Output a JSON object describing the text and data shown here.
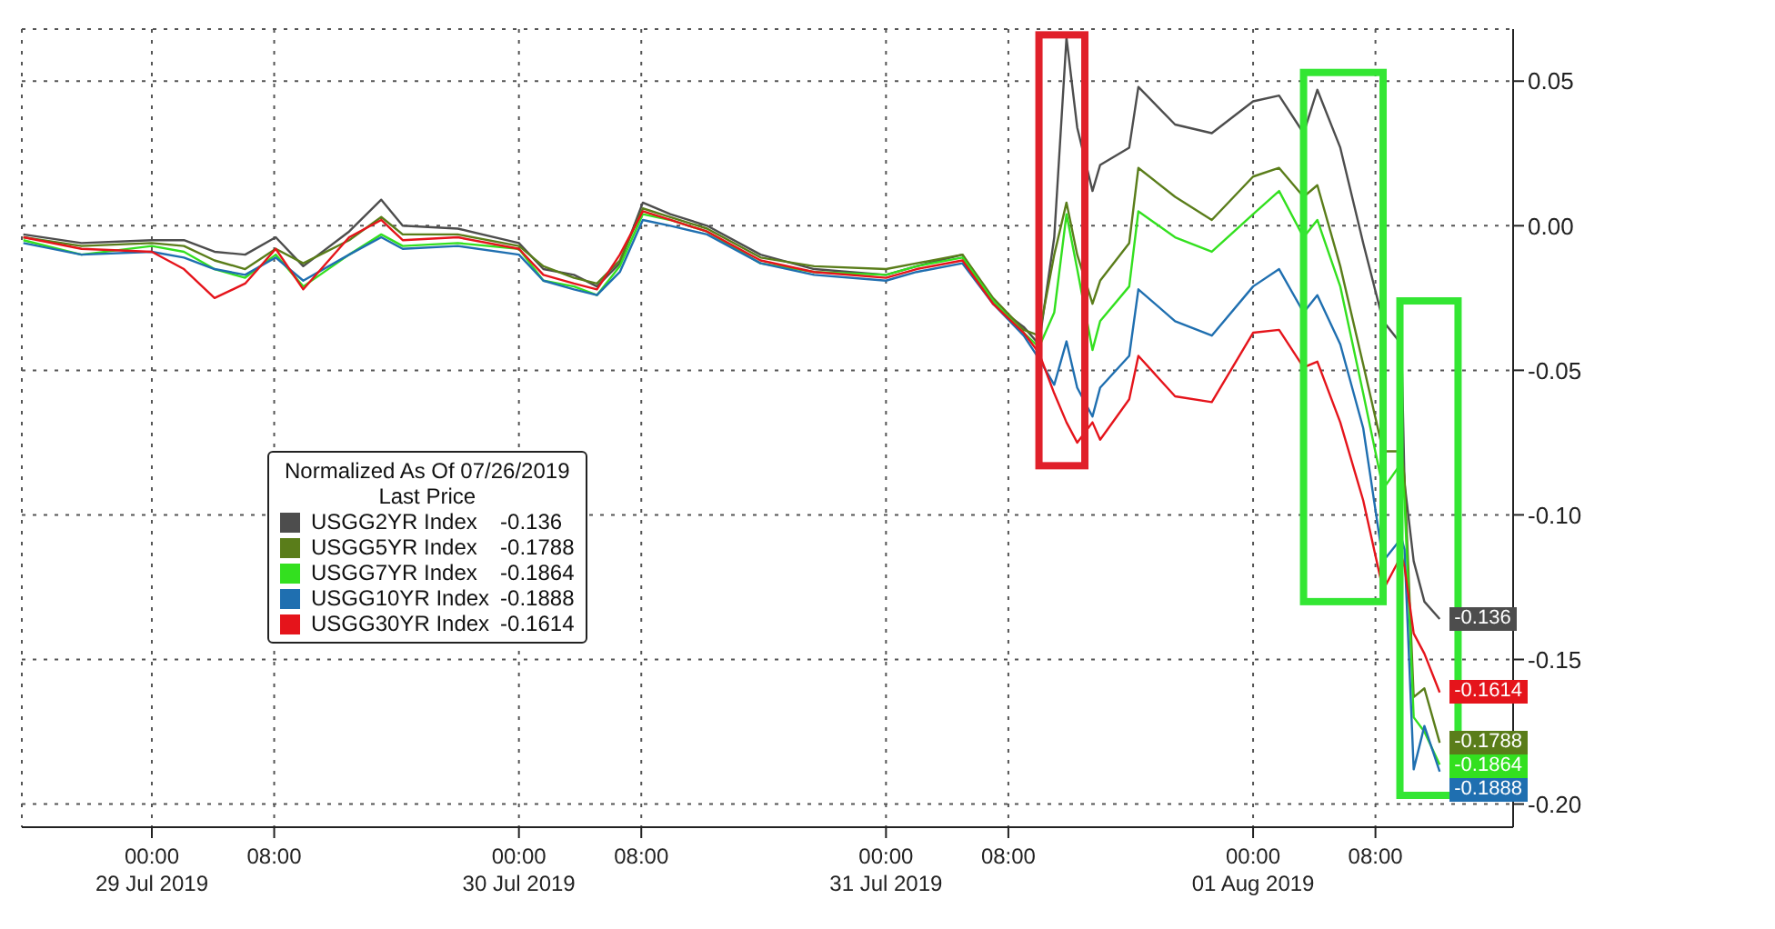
{
  "chart_data": {
    "type": "line",
    "legend_title": "Normalized As Of 07/26/2019\nLast Price",
    "legend": "left",
    "grid": true,
    "x": [
      "2019-07-28T15:36",
      "2019-07-28T19:24",
      "2019-07-29T00:00",
      "2019-07-29T02:06",
      "2019-07-29T04:06",
      "2019-07-29T06:06",
      "2019-07-29T08:06",
      "2019-07-29T09:54",
      "2019-07-29T12:54",
      "2019-07-29T15:00",
      "2019-07-29T16:24",
      "2019-07-29T20:00",
      "2019-07-30T00:00",
      "2019-07-30T01:36",
      "2019-07-30T03:36",
      "2019-07-30T05:06",
      "2019-07-30T06:36",
      "2019-07-30T08:06",
      "2019-07-30T09:54",
      "2019-07-30T12:18",
      "2019-07-30T15:48",
      "2019-07-30T19:18",
      "2019-07-31T00:00",
      "2019-07-31T02:00",
      "2019-07-31T05:00",
      "2019-07-31T07:00",
      "2019-07-31T09:00",
      "2019-07-31T10:00",
      "2019-07-31T11:00",
      "2019-07-31T11:48",
      "2019-07-31T12:30",
      "2019-07-31T13:30",
      "2019-07-31T14:00",
      "2019-07-31T15:54",
      "2019-07-31T16:30",
      "2019-07-31T18:54",
      "2019-07-31T21:18",
      "2019-08-01T00:00",
      "2019-08-01T01:42",
      "2019-08-01T03:18",
      "2019-08-01T04:12",
      "2019-08-01T05:42",
      "2019-08-01T07:12",
      "2019-08-01T08:30",
      "2019-08-01T09:42",
      "2019-08-01T09:54",
      "2019-08-01T10:30",
      "2019-08-01T11:12",
      "2019-08-01T12:12"
    ],
    "xlim": [
      "2019-07-28T15:30",
      "2019-08-01T17:00"
    ],
    "xticks": [
      {
        "value": "2019-07-29T00:00",
        "label": "00:00\n29 Jul 2019"
      },
      {
        "value": "2019-07-29T08:00",
        "label": "08:00"
      },
      {
        "value": "2019-07-30T00:00",
        "label": "00:00\n30 Jul 2019"
      },
      {
        "value": "2019-07-30T08:00",
        "label": "08:00"
      },
      {
        "value": "2019-07-31T00:00",
        "label": "00:00\n31 Jul 2019"
      },
      {
        "value": "2019-07-31T08:00",
        "label": "08:00"
      },
      {
        "value": "2019-08-01T00:00",
        "label": "00:00\n01 Aug 2019"
      },
      {
        "value": "2019-08-01T08:00",
        "label": "08:00"
      }
    ],
    "ylim": [
      -0.208,
      0.068
    ],
    "yticks": [
      {
        "value": 0.05,
        "label": "0.05"
      },
      {
        "value": 0,
        "label": "0.00"
      },
      {
        "value": -0.05,
        "label": "-0.05"
      },
      {
        "value": -0.1,
        "label": "-0.10"
      },
      {
        "value": -0.15,
        "label": "-0.15"
      },
      {
        "value": -0.2,
        "label": "-0.20"
      }
    ],
    "series": [
      {
        "name": "USGG2YR Index",
        "color": "#4d4d4d",
        "values": [
          -0.003,
          -0.006,
          -0.005,
          -0.005,
          -0.009,
          -0.01,
          -0.004,
          -0.014,
          -0.002,
          0.009,
          0.0,
          -0.001,
          -0.006,
          -0.015,
          -0.017,
          -0.021,
          -0.013,
          0.008,
          0.004,
          0.0,
          -0.01,
          -0.015,
          -0.017,
          -0.014,
          -0.01,
          -0.027,
          -0.035,
          -0.041,
          -0.004,
          0.065,
          0.034,
          0.012,
          0.021,
          0.027,
          0.048,
          0.035,
          0.032,
          0.043,
          0.045,
          0.032,
          0.047,
          0.027,
          -0.006,
          -0.033,
          -0.041,
          -0.089,
          -0.116,
          -0.13,
          -0.136
        ],
        "value_labels": [
          null,
          null,
          null,
          null,
          null,
          null,
          null,
          null,
          null,
          null,
          null,
          null,
          null,
          null,
          null,
          null,
          null,
          null,
          null,
          null,
          null,
          null,
          null,
          null,
          null,
          null,
          null,
          null,
          null,
          null,
          null,
          null,
          null,
          null,
          null,
          null,
          null,
          null,
          null,
          null,
          null,
          null,
          null,
          null,
          null,
          null,
          null,
          null,
          "-0.136"
        ]
      },
      {
        "name": "USGG5YR Index",
        "color": "#5a7d1a",
        "values": [
          -0.004,
          -0.007,
          -0.006,
          -0.007,
          -0.012,
          -0.015,
          -0.008,
          -0.013,
          -0.005,
          0.003,
          -0.003,
          -0.003,
          -0.007,
          -0.014,
          -0.018,
          -0.02,
          -0.012,
          0.006,
          0.003,
          -0.001,
          -0.011,
          -0.014,
          -0.015,
          -0.013,
          -0.01,
          -0.025,
          -0.036,
          -0.038,
          -0.01,
          0.008,
          -0.01,
          -0.027,
          -0.019,
          -0.006,
          0.02,
          0.01,
          0.002,
          0.017,
          0.02,
          0.01,
          0.014,
          -0.014,
          -0.048,
          -0.078,
          -0.078,
          -0.087,
          -0.163,
          -0.16,
          -0.1788
        ],
        "value_labels": [
          null,
          null,
          null,
          null,
          null,
          null,
          null,
          null,
          null,
          null,
          null,
          null,
          null,
          null,
          null,
          null,
          null,
          null,
          null,
          null,
          null,
          null,
          null,
          null,
          null,
          null,
          null,
          null,
          null,
          null,
          null,
          null,
          null,
          null,
          null,
          null,
          null,
          null,
          null,
          null,
          null,
          null,
          null,
          null,
          null,
          null,
          null,
          null,
          "-0.1788"
        ]
      },
      {
        "name": "USGG7YR Index",
        "color": "#33e01f",
        "values": [
          -0.005,
          -0.01,
          -0.007,
          -0.009,
          -0.015,
          -0.018,
          -0.01,
          -0.021,
          -0.01,
          -0.003,
          -0.007,
          -0.006,
          -0.008,
          -0.019,
          -0.021,
          -0.024,
          -0.014,
          0.004,
          0.002,
          -0.002,
          -0.013,
          -0.016,
          -0.017,
          -0.014,
          -0.011,
          -0.026,
          -0.037,
          -0.042,
          -0.03,
          0.004,
          -0.015,
          -0.043,
          -0.033,
          -0.021,
          0.005,
          -0.004,
          -0.009,
          0.004,
          0.012,
          -0.004,
          0.002,
          -0.021,
          -0.058,
          -0.091,
          -0.082,
          -0.095,
          -0.17,
          -0.175,
          -0.1864
        ],
        "value_labels": [
          null,
          null,
          null,
          null,
          null,
          null,
          null,
          null,
          null,
          null,
          null,
          null,
          null,
          null,
          null,
          null,
          null,
          null,
          null,
          null,
          null,
          null,
          null,
          null,
          null,
          null,
          null,
          null,
          null,
          null,
          null,
          null,
          null,
          null,
          null,
          null,
          null,
          null,
          null,
          null,
          null,
          null,
          null,
          null,
          null,
          null,
          null,
          null,
          "-0.1864"
        ]
      },
      {
        "name": "USGG10YR Index",
        "color": "#1f6fb0",
        "values": [
          -0.006,
          -0.01,
          -0.009,
          -0.011,
          -0.015,
          -0.017,
          -0.011,
          -0.019,
          -0.01,
          -0.004,
          -0.008,
          -0.007,
          -0.01,
          -0.019,
          -0.022,
          -0.024,
          -0.016,
          0.002,
          0.0,
          -0.003,
          -0.013,
          -0.017,
          -0.019,
          -0.016,
          -0.013,
          -0.027,
          -0.038,
          -0.046,
          -0.055,
          -0.04,
          -0.056,
          -0.066,
          -0.056,
          -0.045,
          -0.022,
          -0.033,
          -0.038,
          -0.021,
          -0.015,
          -0.03,
          -0.024,
          -0.041,
          -0.07,
          -0.116,
          -0.108,
          -0.112,
          -0.188,
          -0.173,
          -0.1888
        ],
        "value_labels": [
          null,
          null,
          null,
          null,
          null,
          null,
          null,
          null,
          null,
          null,
          null,
          null,
          null,
          null,
          null,
          null,
          null,
          null,
          null,
          null,
          null,
          null,
          null,
          null,
          null,
          null,
          null,
          null,
          null,
          null,
          null,
          null,
          null,
          null,
          null,
          null,
          null,
          null,
          null,
          null,
          null,
          null,
          null,
          null,
          null,
          null,
          null,
          null,
          "-0.1888"
        ]
      },
      {
        "name": "USGG30YR Index",
        "color": "#e5141b",
        "values": [
          -0.004,
          -0.008,
          -0.009,
          -0.015,
          -0.025,
          -0.02,
          -0.008,
          -0.022,
          -0.004,
          0.002,
          -0.005,
          -0.004,
          -0.008,
          -0.017,
          -0.02,
          -0.022,
          -0.01,
          0.005,
          0.002,
          -0.002,
          -0.012,
          -0.016,
          -0.018,
          -0.015,
          -0.012,
          -0.027,
          -0.037,
          -0.044,
          -0.058,
          -0.068,
          -0.075,
          -0.068,
          -0.074,
          -0.06,
          -0.045,
          -0.059,
          -0.061,
          -0.037,
          -0.036,
          -0.049,
          -0.047,
          -0.068,
          -0.095,
          -0.126,
          -0.114,
          -0.118,
          -0.141,
          -0.148,
          -0.1614
        ],
        "value_labels": [
          null,
          null,
          null,
          null,
          null,
          null,
          null,
          null,
          null,
          null,
          null,
          null,
          null,
          null,
          null,
          null,
          null,
          null,
          null,
          null,
          null,
          null,
          null,
          null,
          null,
          null,
          null,
          null,
          null,
          null,
          null,
          null,
          null,
          null,
          null,
          null,
          null,
          null,
          null,
          null,
          null,
          null,
          null,
          null,
          null,
          null,
          null,
          null,
          "-0.1614"
        ]
      }
    ]
  }
}
